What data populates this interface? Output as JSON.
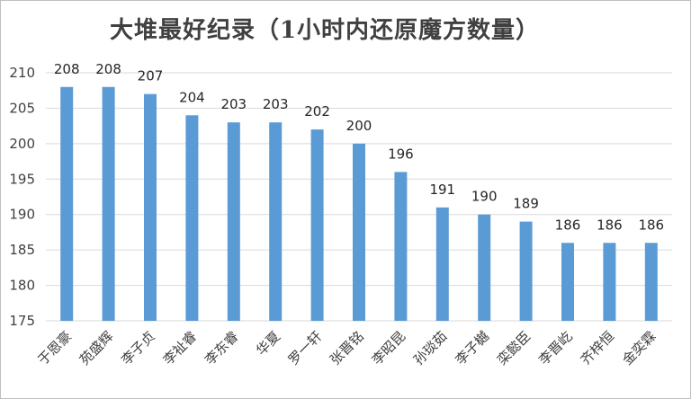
{
  "chart_data": {
    "type": "bar",
    "title": "大堆最好纪录（1小时内还原魔方数量）",
    "categories": [
      "于恩豪",
      "苑盛辉",
      "李子贞",
      "李祉睿",
      "李东睿",
      "华夏",
      "罗一轩",
      "张晋铭",
      "李昭昆",
      "孙琰茹",
      "李子樾",
      "栾懿臣",
      "李晋屹",
      "齐梓恒",
      "金奕霖"
    ],
    "values": [
      208,
      208,
      207,
      204,
      203,
      203,
      202,
      200,
      196,
      191,
      190,
      189,
      186,
      186,
      186
    ],
    "ylim": [
      175,
      210
    ],
    "yticks": [
      175,
      180,
      185,
      190,
      195,
      200,
      205,
      210
    ],
    "bar_color": "#5b9bd5",
    "grid": true,
    "data_labels": true
  }
}
